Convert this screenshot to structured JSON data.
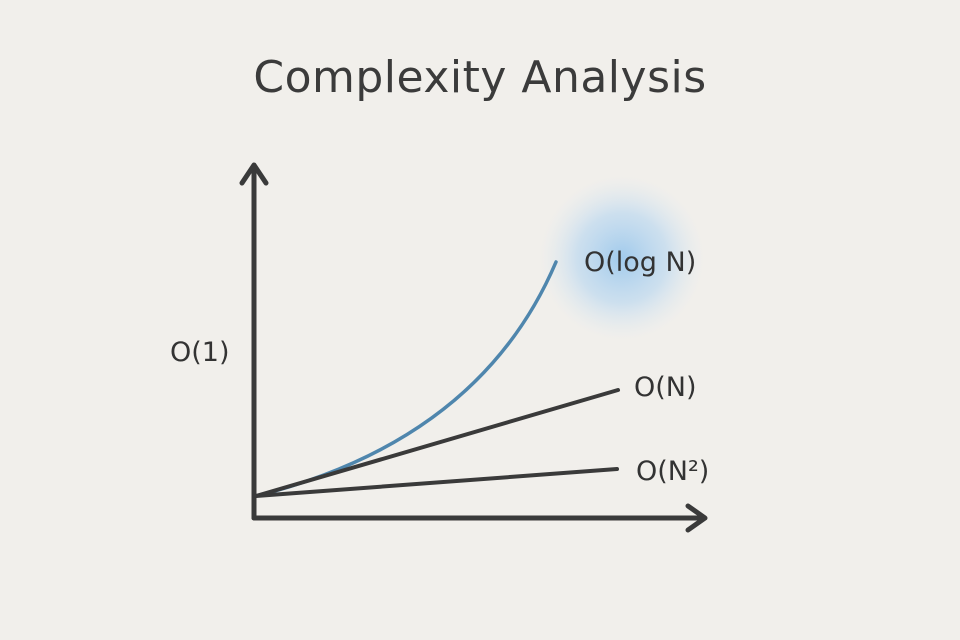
{
  "chart_data": {
    "type": "line",
    "title": "Complexity Analysis",
    "y_label": "O(1)",
    "series": [
      {
        "name": "O(log N)",
        "color": "#4f86ad",
        "highlight": true,
        "curve": "convex"
      },
      {
        "name": "O(N)",
        "color": "#3a3a3a",
        "highlight": false,
        "curve": "linear"
      },
      {
        "name": "O(N²)",
        "color": "#3a3a3a",
        "highlight": false,
        "curve": "linear"
      }
    ],
    "grid": false,
    "legend": "inline-right"
  }
}
